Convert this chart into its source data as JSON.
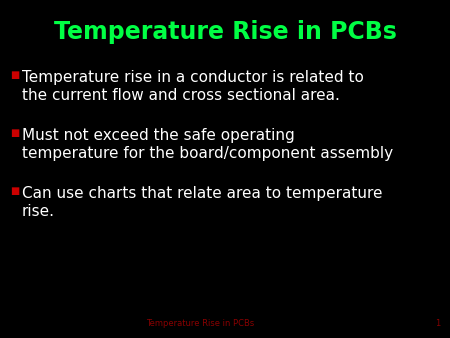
{
  "title": "Temperature Rise in PCBs",
  "title_color": "#00ff44",
  "background_color": "#000000",
  "bullet_color": "#cc0000",
  "bullet_text_color": "#ffffff",
  "footer_text": "Temperature Rise in PCBs",
  "footer_number": "1",
  "footer_color": "#880000",
  "bullets": [
    "Temperature rise in a conductor is related to\nthe current flow and cross sectional area.",
    "Must not exceed the safe operating\ntemperature for the board/component assembly",
    "Can use charts that relate area to temperature\nrise."
  ],
  "title_fontsize": 17,
  "bullet_fontsize": 11,
  "footer_fontsize": 6,
  "bullet_marker_fontsize": 7
}
